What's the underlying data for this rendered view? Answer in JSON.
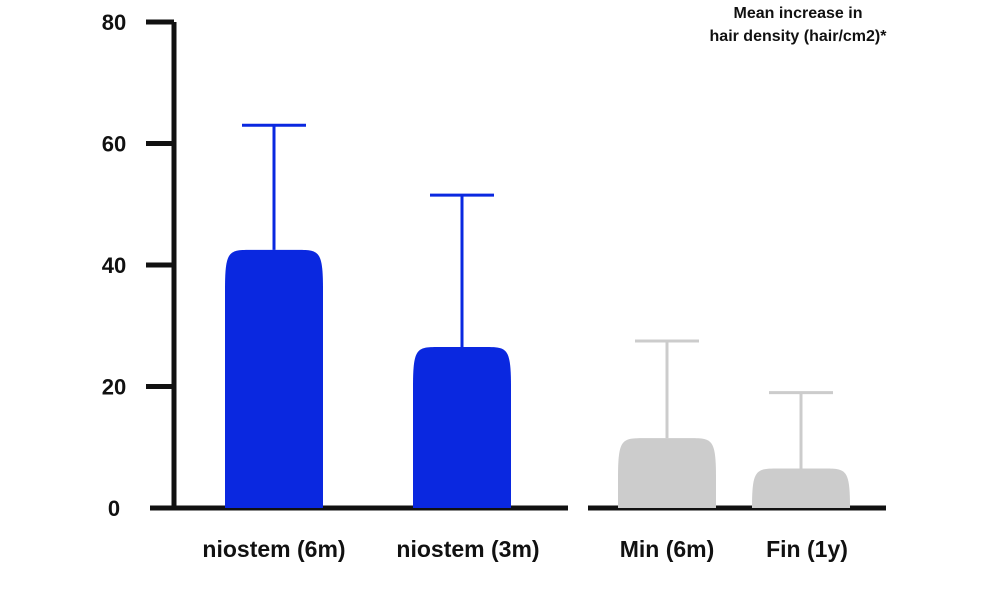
{
  "chart_data": {
    "type": "bar",
    "title_lines": [
      "Mean increase in",
      "hair density (hair/cm2)*"
    ],
    "xlabel": "",
    "ylabel": "",
    "ylim": [
      0,
      80
    ],
    "yticks": [
      0,
      20,
      40,
      60,
      80
    ],
    "grid": false,
    "categories": [
      "niostem (6m)",
      "niostem (3m)",
      "Min (6m)",
      "Fin (1y)"
    ],
    "values": [
      42.5,
      26.5,
      11.5,
      6.5
    ],
    "error_upper": [
      63,
      51.5,
      27.5,
      19
    ],
    "colors": [
      "#0a28e0",
      "#0a28e0",
      "#cccccc",
      "#cccccc"
    ],
    "axis_color": "#111111"
  }
}
